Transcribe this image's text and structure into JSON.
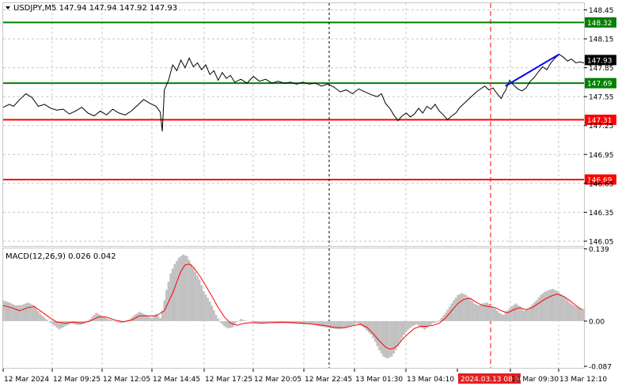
{
  "header": {
    "symbol_line": "USDJPY,M5  147.94 147.94 147.92 147.93"
  },
  "macd_label": "MACD(12,26,9) 0.026 0.042",
  "colors": {
    "support": "#008000",
    "resistance": "#ff0000",
    "projection": "#0000ff",
    "price": "#000000",
    "histogram": "#c0c0c0",
    "signal": "#ff0000",
    "marker_bg": "#e81e1e"
  },
  "chart_data": [
    {
      "type": "line",
      "title": "USDJPY,M5",
      "ylim": [
        146.0,
        148.52
      ],
      "y_ticks": [
        "148.45",
        "148.15",
        "147.85",
        "147.55",
        "147.25",
        "146.95",
        "146.65",
        "146.35",
        "146.05"
      ],
      "current_price": "147.93",
      "levels": [
        {
          "label": "148.32",
          "value": 148.32,
          "color": "green"
        },
        {
          "label": "147.69",
          "value": 147.69,
          "color": "green"
        },
        {
          "label": "147.31",
          "value": 147.31,
          "color": "red"
        },
        {
          "label": "146.69",
          "value": 146.69,
          "color": "red"
        }
      ],
      "x_ticks": [
        "12 Mar 2024",
        "12 Mar 09:25",
        "12 Mar 12:05",
        "12 Mar 14:45",
        "12 Mar 17:25",
        "12 Mar 20:05",
        "12 Mar 22:45",
        "13 Mar 01:30",
        "13 Mar 04:10",
        "2024.03.13 08:30",
        "13 Mar 09:30",
        "13 Mar 12:10"
      ],
      "highlighted_x": "2024.03.13 08:30",
      "price_series": [
        [
          0,
          147.44
        ],
        [
          3,
          147.47
        ],
        [
          5,
          147.45
        ],
        [
          8,
          147.52
        ],
        [
          11,
          147.58
        ],
        [
          14,
          147.54
        ],
        [
          17,
          147.45
        ],
        [
          20,
          147.47
        ],
        [
          23,
          147.43
        ],
        [
          26,
          147.41
        ],
        [
          29,
          147.42
        ],
        [
          32,
          147.37
        ],
        [
          35,
          147.4
        ],
        [
          38,
          147.44
        ],
        [
          41,
          147.38
        ],
        [
          44,
          147.35
        ],
        [
          47,
          147.4
        ],
        [
          50,
          147.36
        ],
        [
          53,
          147.42
        ],
        [
          56,
          147.38
        ],
        [
          59,
          147.36
        ],
        [
          62,
          147.4
        ],
        [
          65,
          147.46
        ],
        [
          68,
          147.52
        ],
        [
          71,
          147.48
        ],
        [
          74,
          147.45
        ],
        [
          76,
          147.39
        ],
        [
          77,
          147.19
        ],
        [
          78,
          147.62
        ],
        [
          80,
          147.72
        ],
        [
          82,
          147.88
        ],
        [
          84,
          147.82
        ],
        [
          86,
          147.93
        ],
        [
          88,
          147.85
        ],
        [
          90,
          147.95
        ],
        [
          92,
          147.86
        ],
        [
          94,
          147.9
        ],
        [
          96,
          147.83
        ],
        [
          98,
          147.88
        ],
        [
          100,
          147.78
        ],
        [
          102,
          147.82
        ],
        [
          104,
          147.72
        ],
        [
          106,
          147.8
        ],
        [
          108,
          147.74
        ],
        [
          110,
          147.77
        ],
        [
          112,
          147.7
        ],
        [
          115,
          147.73
        ],
        [
          118,
          147.69
        ],
        [
          121,
          147.76
        ],
        [
          124,
          147.71
        ],
        [
          127,
          147.73
        ],
        [
          130,
          147.69
        ],
        [
          133,
          147.71
        ],
        [
          136,
          147.69
        ],
        [
          139,
          147.7
        ],
        [
          142,
          147.68
        ],
        [
          145,
          147.7
        ],
        [
          148,
          147.68
        ],
        [
          151,
          147.69
        ],
        [
          154,
          147.66
        ],
        [
          157,
          147.68
        ],
        [
          160,
          147.65
        ],
        [
          163,
          147.6
        ],
        [
          166,
          147.62
        ],
        [
          169,
          147.58
        ],
        [
          172,
          147.63
        ],
        [
          175,
          147.6
        ],
        [
          178,
          147.57
        ],
        [
          181,
          147.55
        ],
        [
          183,
          147.58
        ],
        [
          185,
          147.48
        ],
        [
          187,
          147.43
        ],
        [
          189,
          147.36
        ],
        [
          191,
          147.3
        ],
        [
          193,
          147.35
        ],
        [
          195,
          147.38
        ],
        [
          197,
          147.34
        ],
        [
          199,
          147.37
        ],
        [
          201,
          147.43
        ],
        [
          203,
          147.38
        ],
        [
          205,
          147.45
        ],
        [
          207,
          147.42
        ],
        [
          209,
          147.47
        ],
        [
          211,
          147.4
        ],
        [
          213,
          147.36
        ],
        [
          215,
          147.31
        ],
        [
          217,
          147.35
        ],
        [
          219,
          147.38
        ],
        [
          221,
          147.44
        ],
        [
          223,
          147.48
        ],
        [
          225,
          147.52
        ],
        [
          227,
          147.56
        ],
        [
          229,
          147.6
        ],
        [
          231,
          147.63
        ],
        [
          233,
          147.66
        ],
        [
          235,
          147.62
        ],
        [
          237,
          147.64
        ],
        [
          239,
          147.58
        ],
        [
          241,
          147.53
        ],
        [
          242,
          147.58
        ],
        [
          243,
          147.61
        ],
        [
          245,
          147.72
        ],
        [
          247,
          147.67
        ],
        [
          249,
          147.63
        ],
        [
          251,
          147.61
        ],
        [
          253,
          147.64
        ],
        [
          255,
          147.71
        ],
        [
          257,
          147.75
        ],
        [
          259,
          147.81
        ],
        [
          261,
          147.86
        ],
        [
          263,
          147.83
        ],
        [
          265,
          147.9
        ],
        [
          267,
          147.95
        ],
        [
          269,
          147.99
        ],
        [
          271,
          147.96
        ],
        [
          273,
          147.92
        ],
        [
          275,
          147.94
        ],
        [
          277,
          147.9
        ],
        [
          279,
          147.91
        ],
        [
          281,
          147.9
        ]
      ],
      "projection": {
        "from": [
          243,
          147.66
        ],
        "to": [
          269,
          147.99
        ]
      }
    },
    {
      "type": "bar",
      "title": "MACD(12,26,9) 0.026 0.042",
      "ylim": [
        -0.09,
        0.14
      ],
      "y_ticks": [
        "0.139",
        "0.00",
        "-0.087"
      ],
      "macd_histogram": [
        [
          0,
          0.04
        ],
        [
          3,
          0.036
        ],
        [
          6,
          0.03
        ],
        [
          9,
          0.031
        ],
        [
          12,
          0.036
        ],
        [
          15,
          0.03
        ],
        [
          18,
          0.014
        ],
        [
          21,
          0.003
        ],
        [
          24,
          -0.006
        ],
        [
          27,
          -0.016
        ],
        [
          30,
          -0.01
        ],
        [
          33,
          -0.004
        ],
        [
          36,
          -0.008
        ],
        [
          39,
          -0.005
        ],
        [
          42,
          0.004
        ],
        [
          45,
          0.016
        ],
        [
          48,
          0.01
        ],
        [
          51,
          0.004
        ],
        [
          54,
          0.0
        ],
        [
          57,
          -0.004
        ],
        [
          60,
          -0.001
        ],
        [
          63,
          0.01
        ],
        [
          66,
          0.018
        ],
        [
          68,
          0.014
        ],
        [
          70,
          0.01
        ],
        [
          72,
          0.006
        ],
        [
          74,
          0.014
        ],
        [
          76,
          0.006
        ],
        [
          77,
          0.02
        ],
        [
          79,
          0.06
        ],
        [
          81,
          0.092
        ],
        [
          83,
          0.11
        ],
        [
          85,
          0.122
        ],
        [
          87,
          0.128
        ],
        [
          89,
          0.125
        ],
        [
          91,
          0.11
        ],
        [
          93,
          0.095
        ],
        [
          95,
          0.08
        ],
        [
          97,
          0.058
        ],
        [
          99,
          0.045
        ],
        [
          101,
          0.03
        ],
        [
          103,
          0.012
        ],
        [
          105,
          -0.002
        ],
        [
          107,
          -0.01
        ],
        [
          109,
          -0.014
        ],
        [
          111,
          -0.012
        ],
        [
          113,
          -0.002
        ],
        [
          115,
          0.004
        ],
        [
          117,
          0.001
        ],
        [
          120,
          -0.001
        ],
        [
          123,
          -0.004
        ],
        [
          126,
          -0.004
        ],
        [
          129,
          -0.003
        ],
        [
          132,
          -0.004
        ],
        [
          135,
          -0.004
        ],
        [
          138,
          -0.004
        ],
        [
          141,
          -0.005
        ],
        [
          144,
          -0.006
        ],
        [
          147,
          -0.006
        ],
        [
          150,
          -0.006
        ],
        [
          153,
          -0.01
        ],
        [
          156,
          -0.012
        ],
        [
          159,
          -0.014
        ],
        [
          162,
          -0.016
        ],
        [
          165,
          -0.014
        ],
        [
          168,
          -0.01
        ],
        [
          171,
          -0.004
        ],
        [
          173,
          -0.008
        ],
        [
          175,
          -0.014
        ],
        [
          178,
          -0.026
        ],
        [
          180,
          -0.04
        ],
        [
          182,
          -0.056
        ],
        [
          184,
          -0.068
        ],
        [
          186,
          -0.072
        ],
        [
          188,
          -0.068
        ],
        [
          190,
          -0.056
        ],
        [
          192,
          -0.04
        ],
        [
          194,
          -0.026
        ],
        [
          196,
          -0.016
        ],
        [
          198,
          -0.01
        ],
        [
          200,
          -0.006
        ],
        [
          202,
          -0.012
        ],
        [
          204,
          -0.016
        ],
        [
          206,
          -0.01
        ],
        [
          208,
          -0.004
        ],
        [
          210,
          -0.002
        ],
        [
          212,
          0.006
        ],
        [
          214,
          0.016
        ],
        [
          216,
          0.028
        ],
        [
          218,
          0.04
        ],
        [
          220,
          0.05
        ],
        [
          222,
          0.054
        ],
        [
          224,
          0.05
        ],
        [
          226,
          0.044
        ],
        [
          228,
          0.034
        ],
        [
          230,
          0.03
        ],
        [
          232,
          0.034
        ],
        [
          234,
          0.036
        ],
        [
          236,
          0.03
        ],
        [
          238,
          0.024
        ],
        [
          240,
          0.016
        ],
        [
          242,
          0.012
        ],
        [
          244,
          0.02
        ],
        [
          246,
          0.028
        ],
        [
          248,
          0.034
        ],
        [
          250,
          0.028
        ],
        [
          252,
          0.02
        ],
        [
          254,
          0.024
        ],
        [
          256,
          0.032
        ],
        [
          258,
          0.04
        ],
        [
          260,
          0.05
        ],
        [
          262,
          0.056
        ],
        [
          264,
          0.06
        ],
        [
          266,
          0.062
        ],
        [
          268,
          0.058
        ],
        [
          270,
          0.052
        ],
        [
          272,
          0.045
        ],
        [
          274,
          0.036
        ],
        [
          276,
          0.03
        ],
        [
          278,
          0.026
        ],
        [
          280,
          0.024
        ]
      ],
      "signal_series": [
        [
          0,
          0.03
        ],
        [
          4,
          0.026
        ],
        [
          8,
          0.02
        ],
        [
          12,
          0.026
        ],
        [
          15,
          0.028
        ],
        [
          18,
          0.02
        ],
        [
          22,
          0.008
        ],
        [
          26,
          -0.002
        ],
        [
          30,
          -0.004
        ],
        [
          34,
          -0.002
        ],
        [
          38,
          -0.004
        ],
        [
          42,
          0.0
        ],
        [
          46,
          0.008
        ],
        [
          50,
          0.008
        ],
        [
          54,
          0.002
        ],
        [
          58,
          -0.001
        ],
        [
          62,
          0.002
        ],
        [
          66,
          0.01
        ],
        [
          70,
          0.01
        ],
        [
          74,
          0.01
        ],
        [
          78,
          0.02
        ],
        [
          82,
          0.054
        ],
        [
          86,
          0.096
        ],
        [
          88,
          0.108
        ],
        [
          90,
          0.11
        ],
        [
          92,
          0.104
        ],
        [
          95,
          0.088
        ],
        [
          98,
          0.068
        ],
        [
          101,
          0.048
        ],
        [
          104,
          0.026
        ],
        [
          107,
          0.008
        ],
        [
          110,
          -0.004
        ],
        [
          113,
          -0.008
        ],
        [
          117,
          -0.004
        ],
        [
          121,
          -0.003
        ],
        [
          125,
          -0.004
        ],
        [
          130,
          -0.003
        ],
        [
          135,
          -0.002
        ],
        [
          140,
          -0.003
        ],
        [
          145,
          -0.004
        ],
        [
          150,
          -0.006
        ],
        [
          155,
          -0.008
        ],
        [
          160,
          -0.012
        ],
        [
          165,
          -0.013
        ],
        [
          170,
          -0.008
        ],
        [
          173,
          -0.006
        ],
        [
          176,
          -0.012
        ],
        [
          179,
          -0.024
        ],
        [
          182,
          -0.038
        ],
        [
          185,
          -0.05
        ],
        [
          187,
          -0.054
        ],
        [
          189,
          -0.052
        ],
        [
          191,
          -0.046
        ],
        [
          193,
          -0.036
        ],
        [
          196,
          -0.024
        ],
        [
          199,
          -0.014
        ],
        [
          202,
          -0.01
        ],
        [
          205,
          -0.01
        ],
        [
          208,
          -0.008
        ],
        [
          211,
          -0.004
        ],
        [
          214,
          0.006
        ],
        [
          217,
          0.02
        ],
        [
          220,
          0.034
        ],
        [
          223,
          0.042
        ],
        [
          226,
          0.044
        ],
        [
          229,
          0.036
        ],
        [
          232,
          0.03
        ],
        [
          235,
          0.028
        ],
        [
          238,
          0.026
        ],
        [
          241,
          0.02
        ],
        [
          244,
          0.016
        ],
        [
          247,
          0.022
        ],
        [
          250,
          0.026
        ],
        [
          253,
          0.022
        ],
        [
          256,
          0.026
        ],
        [
          259,
          0.034
        ],
        [
          262,
          0.042
        ],
        [
          265,
          0.048
        ],
        [
          268,
          0.052
        ],
        [
          271,
          0.048
        ],
        [
          274,
          0.04
        ],
        [
          277,
          0.03
        ],
        [
          280,
          0.022
        ]
      ]
    }
  ]
}
